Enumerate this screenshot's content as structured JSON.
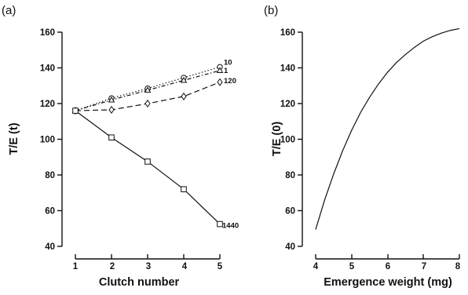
{
  "chart_data": [
    {
      "panel_label": "(a)",
      "type": "line",
      "xlabel": "Clutch number",
      "ylabel": "T/E (t)",
      "xlim": [
        1,
        5
      ],
      "ylim": [
        40,
        160
      ],
      "xticks": [
        1,
        2,
        3,
        4,
        5
      ],
      "yticks": [
        40,
        60,
        80,
        100,
        120,
        140,
        160
      ],
      "grid": false,
      "x": [
        1,
        2,
        3,
        4,
        5
      ],
      "series": [
        {
          "name": "10",
          "marker": "circle",
          "line": "dotted",
          "values": [
            116,
            123,
            128.5,
            134.5,
            140.5
          ]
        },
        {
          "name": "1",
          "marker": "triangle",
          "line": "dash-dot",
          "values": [
            116,
            122,
            127.5,
            133,
            138.5
          ]
        },
        {
          "name": "120",
          "marker": "diamond",
          "line": "dashed",
          "values": [
            116,
            116.5,
            120,
            124,
            132
          ]
        },
        {
          "name": "1440",
          "marker": "square",
          "line": "solid",
          "values": [
            116,
            101,
            87.5,
            72,
            52.5
          ]
        }
      ]
    },
    {
      "panel_label": "(b)",
      "type": "line",
      "xlabel": "Emergence weight (mg)",
      "ylabel": "T/E (0)",
      "xlim": [
        4,
        8
      ],
      "ylim": [
        40,
        160
      ],
      "xticks": [
        4,
        5,
        6,
        7,
        8
      ],
      "yticks": [
        40,
        60,
        80,
        100,
        120,
        140,
        160
      ],
      "grid": false,
      "series": [
        {
          "line": "solid",
          "x": [
            4,
            4.25,
            4.5,
            4.75,
            5,
            5.25,
            5.5,
            5.75,
            6,
            6.25,
            6.5,
            6.75,
            7,
            7.25,
            7.5,
            7.75,
            8
          ],
          "values": [
            49.5,
            66,
            80.5,
            93.5,
            105,
            115,
            123.5,
            131,
            137.5,
            143,
            147.5,
            151.5,
            155,
            157.5,
            159.5,
            161,
            162
          ]
        }
      ]
    }
  ]
}
